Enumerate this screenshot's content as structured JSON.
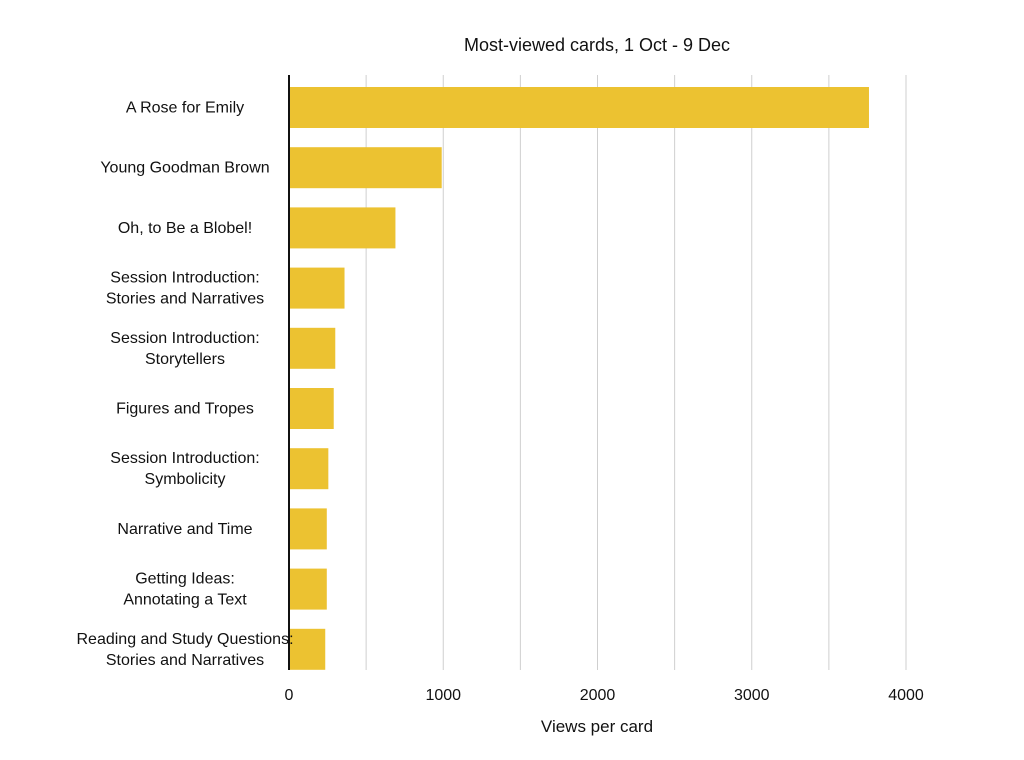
{
  "chart_data": {
    "type": "bar",
    "orientation": "horizontal",
    "title": "Most-viewed cards, 1 Oct - 9 Dec",
    "xlabel": "Views per card",
    "ylabel": "",
    "xlim": [
      0,
      4000
    ],
    "x_ticks": [
      "0",
      "1000",
      "2000",
      "3000",
      "4000"
    ],
    "x_tick_values": [
      0,
      1000,
      2000,
      3000,
      4000
    ],
    "minor_gridlines": [
      500,
      1500,
      2500,
      3500
    ],
    "grid": true,
    "bar_color": "#ECC231",
    "categories": [
      [
        "A Rose for Emily"
      ],
      [
        "Young Goodman Brown"
      ],
      [
        "Oh, to Be a Blobel!"
      ],
      [
        "Session Introduction:",
        "Stories and Narratives"
      ],
      [
        "Session Introduction:",
        "Storytellers"
      ],
      [
        "Figures and Tropes"
      ],
      [
        "Session Introduction:",
        "Symbolicity"
      ],
      [
        "Narrative and Time"
      ],
      [
        "Getting Ideas:",
        "Annotating a Text"
      ],
      [
        "Reading and Study Questions:",
        "Stories and Narratives"
      ]
    ],
    "values": [
      3760,
      990,
      690,
      360,
      300,
      290,
      255,
      245,
      245,
      235
    ]
  }
}
